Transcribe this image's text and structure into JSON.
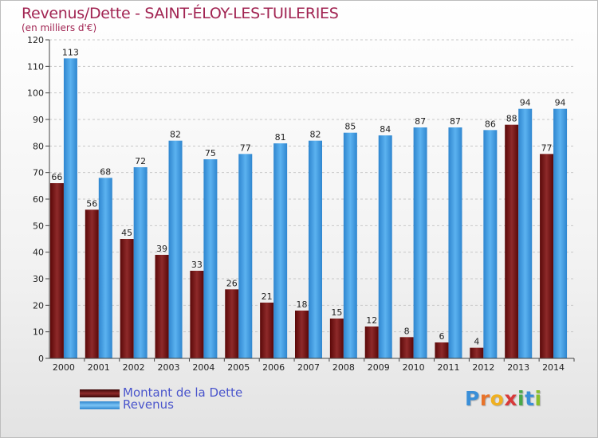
{
  "title": "Revenus/Dette - SAINT-ÉLOY-LES-TUILERIES",
  "subtitle": "(en milliers d'€)",
  "logo": {
    "text": "Proxiti",
    "letters": [
      "P",
      "r",
      "o",
      "x",
      "i",
      "t",
      "i"
    ],
    "colors": [
      "#3a8fd8",
      "#e8732a",
      "#f0b020",
      "#d83a3a",
      "#4aa84a",
      "#3a8fd8",
      "#8bbf2a"
    ]
  },
  "chart_data": {
    "type": "bar",
    "categories": [
      "2000",
      "2001",
      "2002",
      "2003",
      "2004",
      "2005",
      "2006",
      "2007",
      "2008",
      "2009",
      "2010",
      "2011",
      "2012",
      "2013",
      "2014"
    ],
    "series": [
      {
        "name": "Montant de la Dette",
        "values": [
          66,
          56,
          45,
          39,
          33,
          26,
          21,
          18,
          15,
          12,
          8,
          6,
          4,
          88,
          77
        ],
        "color": "#7a1a1a"
      },
      {
        "name": "Revenus",
        "values": [
          113,
          68,
          72,
          82,
          75,
          77,
          81,
          82,
          85,
          84,
          87,
          87,
          86,
          94,
          94
        ],
        "color": "#4da6e8"
      }
    ],
    "yticks": [
      "0",
      "10",
      "20",
      "30",
      "40",
      "50",
      "60",
      "70",
      "80",
      "90",
      "100",
      "110",
      "120"
    ],
    "ylim": [
      0,
      120
    ],
    "grid": true,
    "legend_position": "bottom-left"
  }
}
